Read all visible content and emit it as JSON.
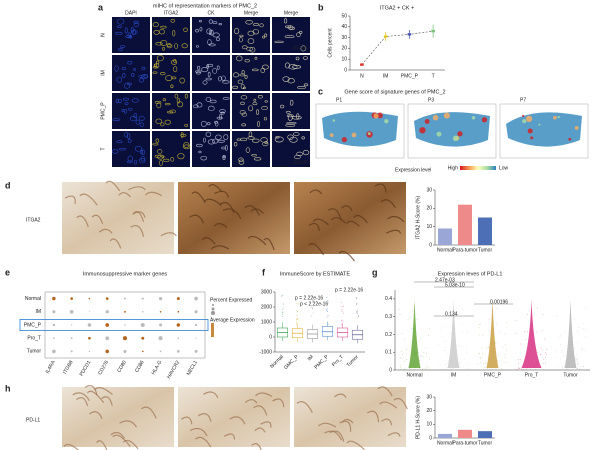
{
  "panels": {
    "a": {
      "letter": "a",
      "title": "mIHC of representation markers of PMC_2",
      "columns": [
        "DAPI",
        "ITGA2",
        "CK",
        "Merge",
        "Merge"
      ],
      "rows": [
        "N",
        "IM",
        "PMC_P",
        "T"
      ],
      "scale": "200μm"
    },
    "b": {
      "letter": "b",
      "type": "line",
      "title": "ITGA2 + CK +",
      "y_label": "Cells percent",
      "categories": [
        "N",
        "IM",
        "PMC_P",
        "T"
      ],
      "values": [
        5,
        31,
        33,
        36
      ],
      "errors": [
        1,
        4,
        4,
        6
      ],
      "colors": [
        "#e0312a",
        "#e3c92a",
        "#4a5bb0",
        "#7cc37b"
      ],
      "ylim": [
        0,
        50
      ],
      "yticks": [
        0,
        10,
        20,
        30,
        40,
        50
      ]
    },
    "c": {
      "letter": "c",
      "title": "Gene score of signature genes of PMC_2",
      "samples": [
        "P1",
        "P3",
        "P7"
      ],
      "legend_title": "Expression level",
      "high": "High",
      "low": "Low"
    },
    "d": {
      "letter": "d",
      "label": "ITGA2",
      "type": "bar",
      "y_label": "ITGA2 H-Score (%)",
      "categories": [
        "Normal",
        "Para-tumor",
        "Tumor"
      ],
      "values": [
        9,
        22,
        15
      ],
      "colors": [
        "#9aa6d6",
        "#ef8a8a",
        "#4d6fb5"
      ],
      "ylim": [
        0,
        30
      ],
      "yticks": [
        0,
        10,
        20,
        30
      ]
    },
    "e": {
      "letter": "e",
      "title": "Immunosuppressive marker genes",
      "rows": [
        "Normal",
        "IM",
        "PMC_P",
        "Pro_T",
        "Tumor"
      ],
      "genes": [
        "IL4RA",
        "ITGB8",
        "PDCD1",
        "CD276",
        "CD80",
        "CD86",
        "HLA-G",
        "HAVCR2",
        "NECL1"
      ],
      "legend_pct": "Percent Expressed",
      "legend_avg": "Average Expression"
    },
    "f": {
      "letter": "f",
      "type": "box",
      "title": "ImmuneScore by ESTIMATE",
      "categories": [
        "Normal",
        "GMC_P",
        "IM",
        "PMC_P",
        "Pro_T",
        "Tumor"
      ],
      "q1": [
        0,
        -50,
        -100,
        50,
        0,
        -150
      ],
      "medians": [
        300,
        250,
        200,
        350,
        300,
        150
      ],
      "q3": [
        600,
        550,
        500,
        700,
        600,
        450
      ],
      "colors": [
        "#3aa655",
        "#e3b23c",
        "#9a9a9a",
        "#5a8fd0",
        "#d85a9a",
        "#6a6a9a"
      ],
      "ylim": [
        -1000,
        3000
      ],
      "yticks": [
        -1000,
        0,
        1000,
        2000,
        3000
      ],
      "pvalues": [
        "p = 2.22e-16",
        "p < 2.22e-16",
        "p = 2.22e-16"
      ]
    },
    "g": {
      "letter": "g",
      "title": "Expression leves of PD-L1",
      "categories": [
        "Normal",
        "IM",
        "PMC_P",
        "Pro_T",
        "Tumor"
      ],
      "colors": [
        "#5aa02c",
        "#c8c8c8",
        "#c79a3a",
        "#d6247a",
        "#b0b0b0"
      ],
      "ylim": [
        0,
        0.45
      ],
      "yticks": [
        0,
        0.1,
        0.2,
        0.3,
        0.4
      ],
      "pvalues": [
        "2.47e-03",
        "5.03e-10",
        "0.00196",
        "0.134"
      ]
    },
    "h": {
      "letter": "h",
      "label": "PD-L1",
      "type": "bar",
      "y_label": "PD-L1 H-Score (%)",
      "categories": [
        "Normal",
        "Para-tumor",
        "Tumor"
      ],
      "values": [
        3,
        6,
        5
      ],
      "colors": [
        "#9aa6d6",
        "#ef8a8a",
        "#4d6fb5"
      ],
      "ylim": [
        0,
        30
      ],
      "yticks": [
        0,
        10,
        20,
        30
      ]
    }
  }
}
